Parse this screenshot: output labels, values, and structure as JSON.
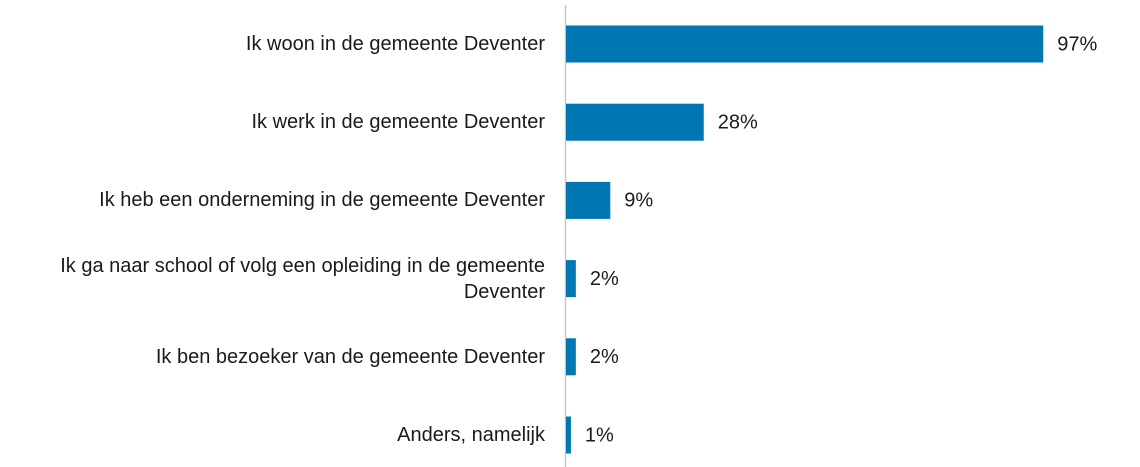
{
  "chart_data": {
    "type": "barh",
    "categories": [
      "Ik woon in de gemeente Deventer",
      "Ik werk in de gemeente Deventer",
      "Ik heb een onderneming in de gemeente Deventer",
      "Ik ga naar school of volg een opleiding in de gemeente Deventer",
      "Ik ben bezoeker van de gemeente Deventer",
      "Anders, namelijk"
    ],
    "values": [
      97,
      28,
      9,
      2,
      2,
      1
    ],
    "value_labels": [
      "97%",
      "28%",
      "9%",
      "2%",
      "2%",
      "1%"
    ],
    "color": "#0077b0",
    "xlim": [
      0,
      100
    ]
  }
}
